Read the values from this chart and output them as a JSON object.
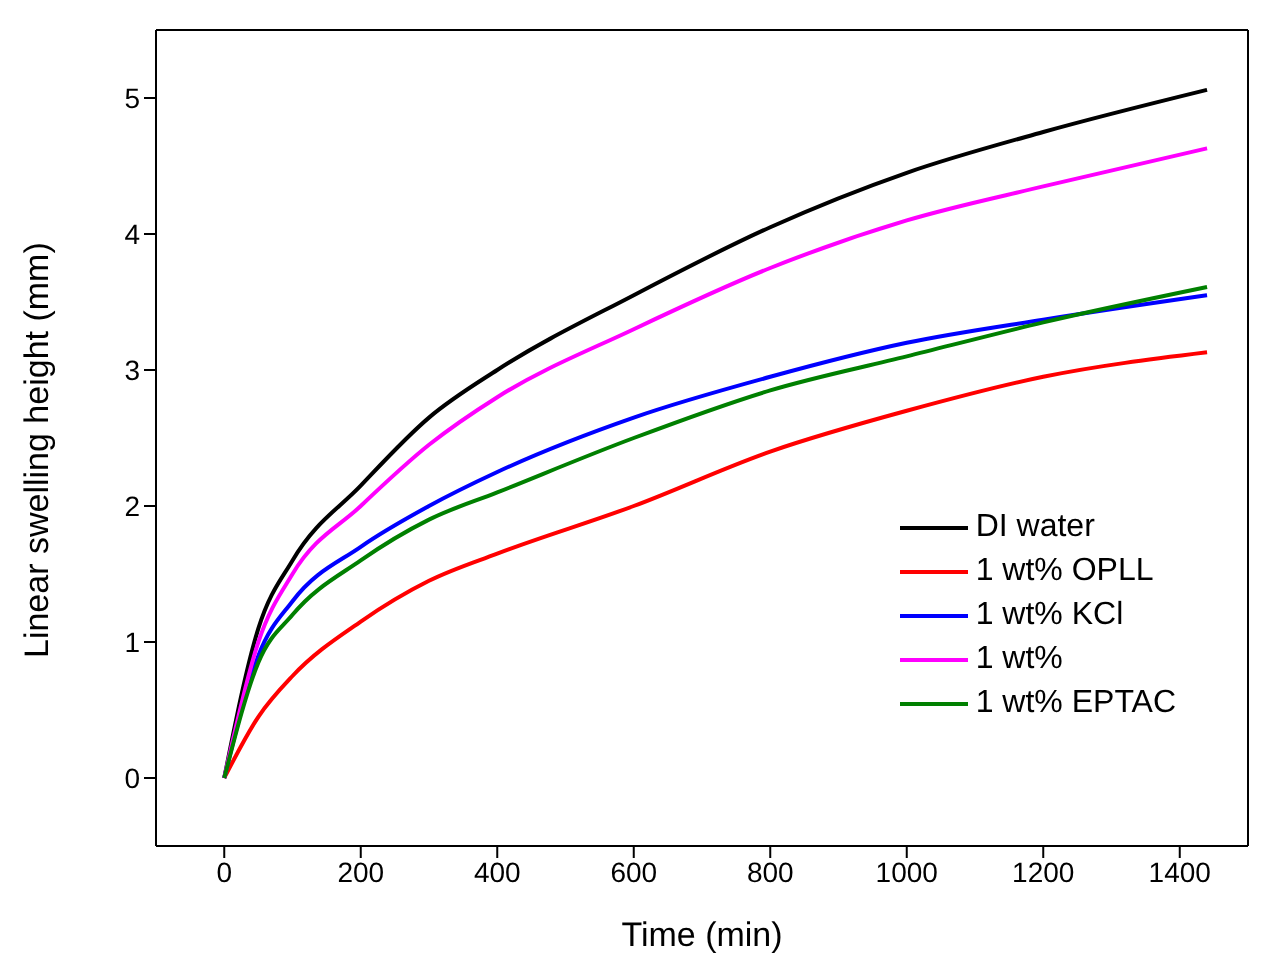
{
  "chart_data": {
    "type": "line",
    "xlabel": "Time (min)",
    "ylabel": "Linear swelling height (mm)",
    "x": [
      0,
      50,
      100,
      200,
      300,
      400,
      600,
      800,
      1000,
      1200,
      1440
    ],
    "series": [
      {
        "name": "DI water",
        "color": "#000000",
        "values": [
          0,
          1.1,
          1.6,
          2.15,
          2.65,
          3.0,
          3.55,
          4.05,
          4.45,
          4.75,
          5.06
        ]
      },
      {
        "name": "1 wt% OPLL",
        "color": "#ff0000",
        "values": [
          0,
          0.45,
          0.75,
          1.15,
          1.45,
          1.65,
          2.0,
          2.4,
          2.7,
          2.95,
          3.13
        ]
      },
      {
        "name": "1 wt% KCl",
        "color": "#0000ff",
        "values": [
          0,
          0.9,
          1.3,
          1.7,
          2.0,
          2.25,
          2.65,
          2.95,
          3.2,
          3.37,
          3.55
        ]
      },
      {
        "name": "1 wt%",
        "color": "#ff00ff",
        "values": [
          0,
          1.0,
          1.5,
          2.0,
          2.45,
          2.8,
          3.3,
          3.75,
          4.1,
          4.35,
          4.63
        ]
      },
      {
        "name": "1 wt% EPTAC",
        "color": "#008000",
        "values": [
          0,
          0.85,
          1.2,
          1.6,
          1.9,
          2.1,
          2.5,
          2.85,
          3.1,
          3.35,
          3.61
        ]
      }
    ],
    "xlim": [
      -100,
      1500
    ],
    "xticks": [
      0,
      200,
      400,
      600,
      800,
      1000,
      1200,
      1400
    ],
    "ylim": [
      -0.5,
      5.5
    ],
    "yticks": [
      0,
      1,
      2,
      3,
      4,
      5
    ],
    "grid": false,
    "legend": "bottom right",
    "marker": "none",
    "line_style": "solid"
  }
}
